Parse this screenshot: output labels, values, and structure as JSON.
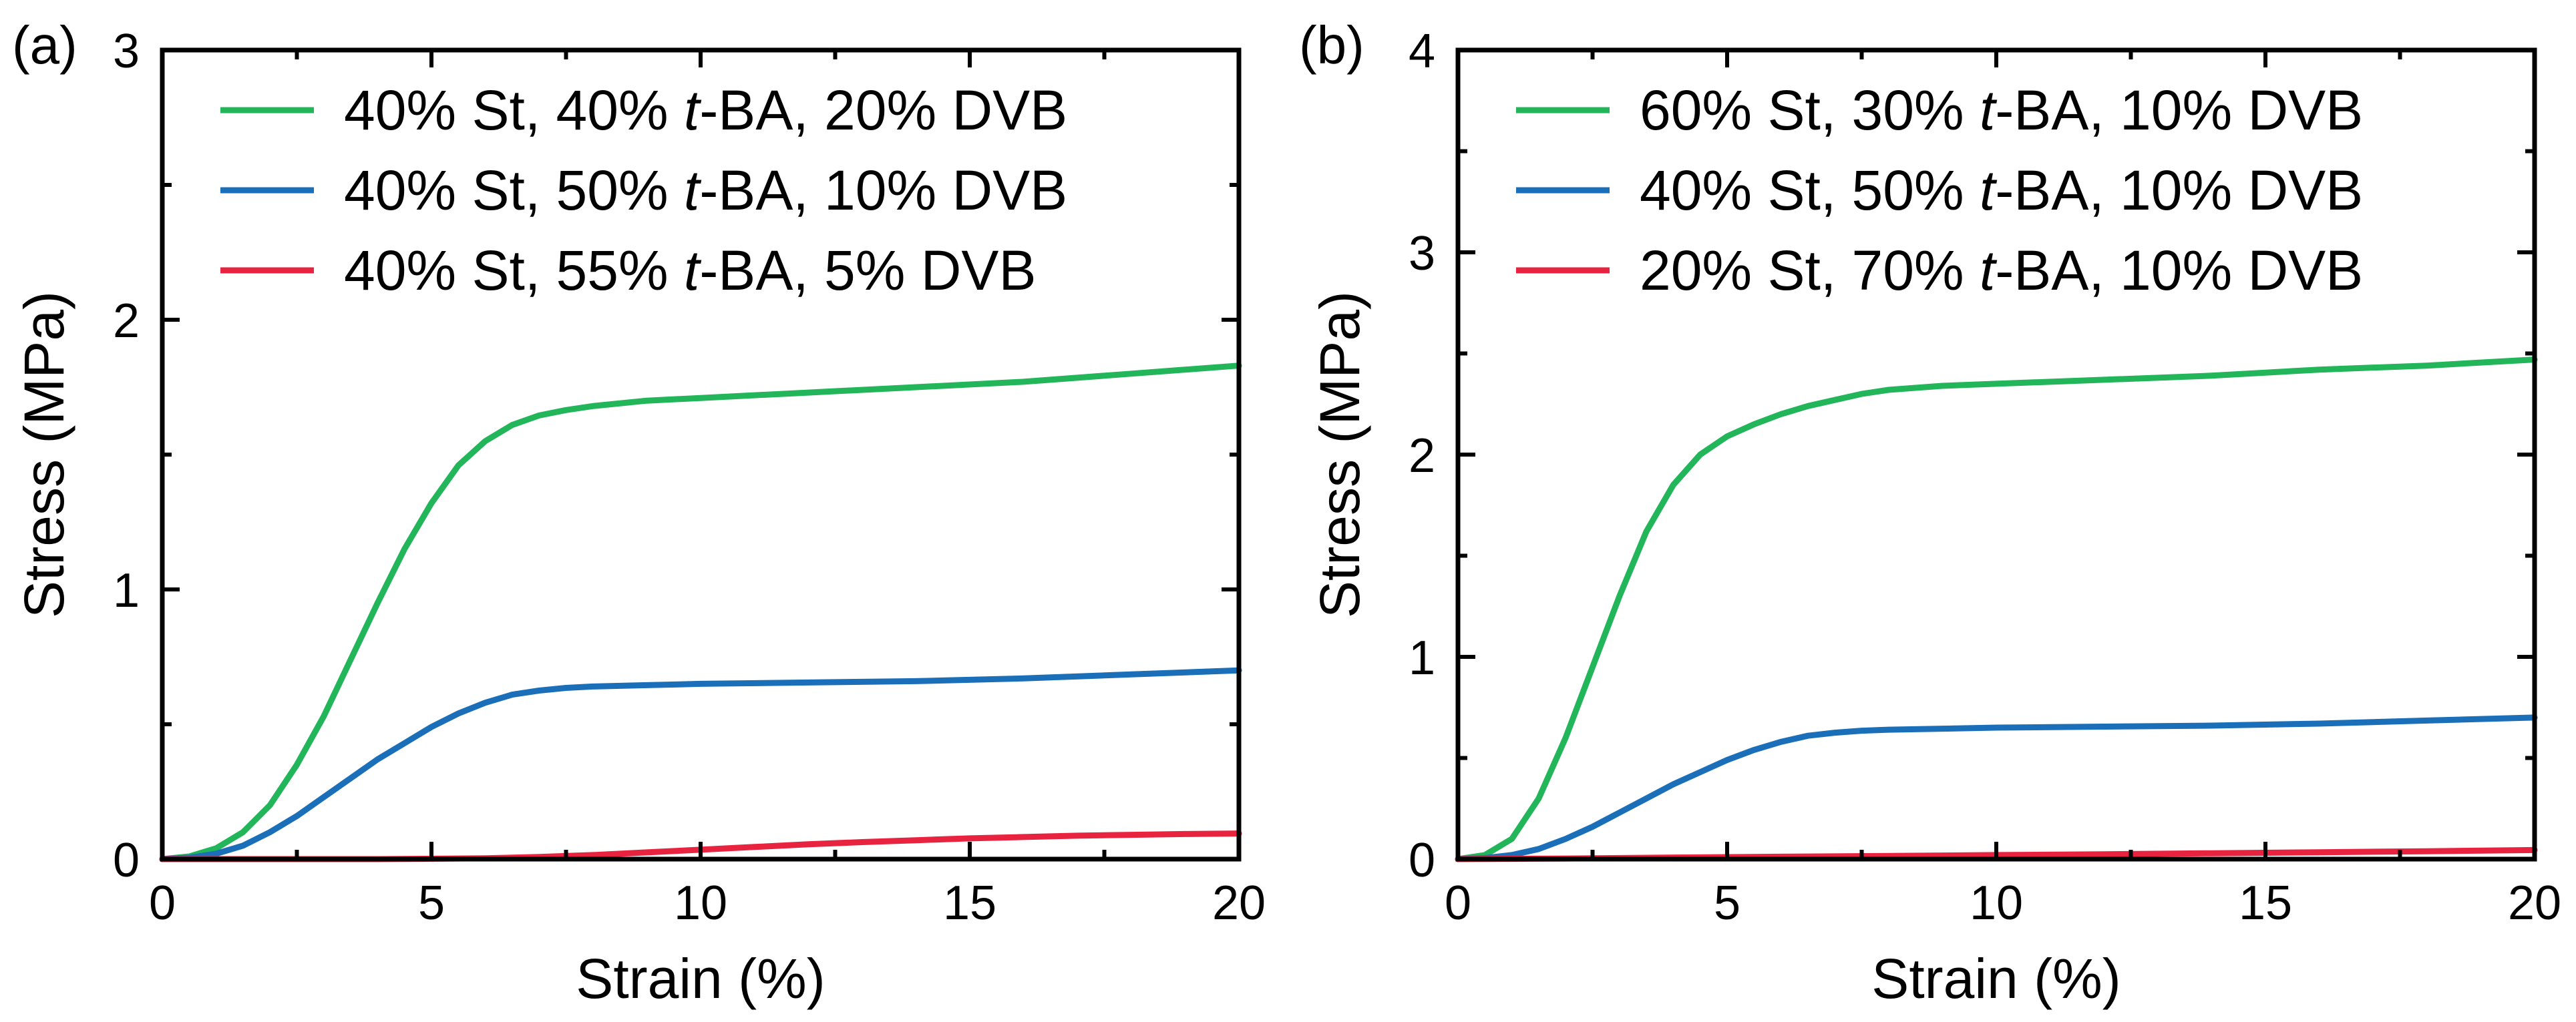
{
  "chart_data": [
    {
      "type": "line",
      "panel_label": "(a)",
      "xlabel": "Strain (%)",
      "ylabel": "Stress (MPa)",
      "xlim": [
        0,
        20
      ],
      "ylim": [
        0,
        3
      ],
      "x_ticks": [
        0,
        5,
        10,
        15,
        20
      ],
      "y_ticks": [
        0,
        1,
        2,
        3
      ],
      "legend_position": "top-left",
      "series": [
        {
          "name_prefix": "40% St, 40% ",
          "name_italic": "t",
          "name_suffix": "-BA, 20% DVB",
          "color": "#22b559",
          "x": [
            0,
            0.5,
            1,
            1.5,
            2,
            2.5,
            3,
            3.5,
            4,
            4.5,
            5,
            5.5,
            6,
            6.5,
            7,
            7.5,
            8,
            9,
            10,
            12,
            14,
            16,
            18,
            20
          ],
          "y": [
            0,
            0.01,
            0.04,
            0.1,
            0.2,
            0.35,
            0.53,
            0.74,
            0.95,
            1.15,
            1.32,
            1.46,
            1.55,
            1.61,
            1.645,
            1.665,
            1.68,
            1.7,
            1.71,
            1.73,
            1.75,
            1.77,
            1.8,
            1.83
          ]
        },
        {
          "name_prefix": "40% St, 50% ",
          "name_italic": "t",
          "name_suffix": "-BA, 10% DVB",
          "color": "#1a6fb8",
          "x": [
            0,
            0.5,
            1,
            1.5,
            2,
            2.5,
            3,
            3.5,
            4,
            4.5,
            5,
            5.5,
            6,
            6.5,
            7,
            7.5,
            8,
            9,
            10,
            12,
            14,
            16,
            18,
            20
          ],
          "y": [
            0,
            0.005,
            0.02,
            0.05,
            0.1,
            0.16,
            0.23,
            0.3,
            0.37,
            0.43,
            0.49,
            0.54,
            0.58,
            0.61,
            0.625,
            0.635,
            0.64,
            0.645,
            0.65,
            0.655,
            0.66,
            0.67,
            0.685,
            0.7
          ]
        },
        {
          "name_prefix": "40% St, 55% ",
          "name_italic": "t",
          "name_suffix": "-BA, 5% DVB",
          "color": "#e8233f",
          "x": [
            0,
            2,
            4,
            6,
            7,
            8,
            9,
            10,
            11,
            12,
            13,
            14,
            15,
            16,
            17,
            18,
            19,
            20
          ],
          "y": [
            0,
            0,
            0,
            0.003,
            0.008,
            0.015,
            0.025,
            0.035,
            0.045,
            0.055,
            0.063,
            0.07,
            0.077,
            0.082,
            0.087,
            0.09,
            0.093,
            0.095
          ]
        }
      ]
    },
    {
      "type": "line",
      "panel_label": "(b)",
      "xlabel": "Strain (%)",
      "ylabel": "Stress (MPa)",
      "xlim": [
        0,
        20
      ],
      "ylim": [
        0,
        4
      ],
      "x_ticks": [
        0,
        5,
        10,
        15,
        20
      ],
      "y_ticks": [
        0,
        1,
        2,
        3,
        4
      ],
      "legend_position": "top-left",
      "series": [
        {
          "name_prefix": "60% St, 30% ",
          "name_italic": "t",
          "name_suffix": "-BA, 10% DVB",
          "color": "#22b559",
          "x": [
            0,
            0.5,
            1,
            1.5,
            2,
            2.5,
            3,
            3.5,
            4,
            4.5,
            5,
            5.5,
            6,
            6.5,
            7,
            7.5,
            8,
            9,
            10,
            12,
            14,
            16,
            18,
            20
          ],
          "y": [
            0,
            0.02,
            0.1,
            0.3,
            0.6,
            0.95,
            1.3,
            1.62,
            1.85,
            2.0,
            2.09,
            2.15,
            2.2,
            2.24,
            2.27,
            2.3,
            2.32,
            2.34,
            2.35,
            2.37,
            2.39,
            2.42,
            2.44,
            2.47
          ]
        },
        {
          "name_prefix": "40% St, 50% ",
          "name_italic": "t",
          "name_suffix": "-BA, 10% DVB",
          "color": "#1a6fb8",
          "x": [
            0,
            0.5,
            1,
            1.5,
            2,
            2.5,
            3,
            3.5,
            4,
            4.5,
            5,
            5.5,
            6,
            6.5,
            7,
            7.5,
            8,
            9,
            10,
            12,
            14,
            16,
            18,
            20
          ],
          "y": [
            0,
            0.005,
            0.02,
            0.05,
            0.1,
            0.16,
            0.23,
            0.3,
            0.37,
            0.43,
            0.49,
            0.54,
            0.58,
            0.61,
            0.625,
            0.635,
            0.64,
            0.645,
            0.65,
            0.655,
            0.66,
            0.67,
            0.685,
            0.7
          ]
        },
        {
          "name_prefix": "20% St, 70% ",
          "name_italic": "t",
          "name_suffix": "-BA, 10% DVB",
          "color": "#e8233f",
          "x": [
            0,
            2,
            4,
            6,
            8,
            10,
            12,
            14,
            16,
            18,
            20
          ],
          "y": [
            0,
            0.003,
            0.008,
            0.012,
            0.016,
            0.02,
            0.024,
            0.029,
            0.034,
            0.039,
            0.045
          ]
        }
      ]
    }
  ]
}
